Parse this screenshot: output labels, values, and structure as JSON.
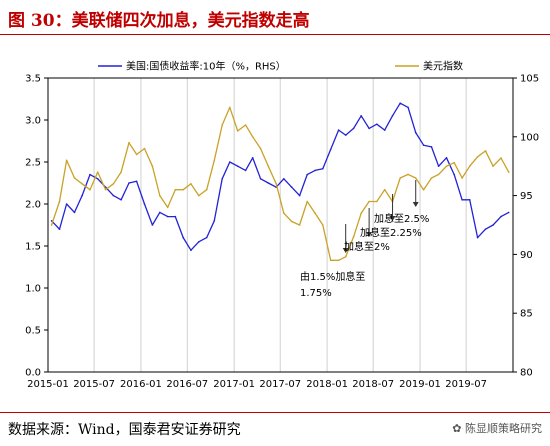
{
  "header": {
    "title": "图 30：美联储四次加息，美元指数走高"
  },
  "footer": {
    "source": "数据来源：Wind，国泰君安证券研究",
    "watermark": "陈显顺策略研究"
  },
  "colors": {
    "yield": "#2323d6",
    "dxy": "#c9a227",
    "title": "#c00000",
    "grid": "#d0d0d0"
  },
  "chart_data": {
    "type": "line",
    "title": "",
    "x_ticks": [
      "2015-01",
      "2015-07",
      "2016-01",
      "2016-07",
      "2017-01",
      "2017-07",
      "2018-01",
      "2018-07",
      "2019-01",
      "2019-07"
    ],
    "y_left": {
      "min": 0.0,
      "max": 3.5,
      "ticks": [
        "0.0",
        "0.5",
        "1.0",
        "1.5",
        "2.0",
        "2.5",
        "3.0",
        "3.5"
      ]
    },
    "y_right": {
      "min": 80,
      "max": 105,
      "ticks": [
        "80",
        "85",
        "90",
        "95",
        "100",
        "105"
      ]
    },
    "legend": {
      "placement": "top",
      "entries": [
        "美国:国债收益率:10年（%，RHS）",
        "美元指数"
      ]
    },
    "grid": true,
    "series": [
      {
        "name": "美国:国债收益率:10年（%，RHS）",
        "axis": "left",
        "points": [
          [
            "2015-01",
            1.8
          ],
          [
            "2015-02",
            1.7
          ],
          [
            "2015-03",
            2.0
          ],
          [
            "2015-04",
            1.9
          ],
          [
            "2015-05",
            2.1
          ],
          [
            "2015-06",
            2.35
          ],
          [
            "2015-07",
            2.3
          ],
          [
            "2015-08",
            2.2
          ],
          [
            "2015-09",
            2.1
          ],
          [
            "2015-10",
            2.05
          ],
          [
            "2015-11",
            2.25
          ],
          [
            "2015-12",
            2.27
          ],
          [
            "2016-01",
            2.0
          ],
          [
            "2016-02",
            1.75
          ],
          [
            "2016-03",
            1.9
          ],
          [
            "2016-04",
            1.85
          ],
          [
            "2016-05",
            1.85
          ],
          [
            "2016-06",
            1.6
          ],
          [
            "2016-07",
            1.45
          ],
          [
            "2016-08",
            1.55
          ],
          [
            "2016-09",
            1.6
          ],
          [
            "2016-10",
            1.8
          ],
          [
            "2016-11",
            2.3
          ],
          [
            "2016-12",
            2.5
          ],
          [
            "2017-01",
            2.45
          ],
          [
            "2017-02",
            2.4
          ],
          [
            "2017-03",
            2.55
          ],
          [
            "2017-04",
            2.3
          ],
          [
            "2017-05",
            2.25
          ],
          [
            "2017-06",
            2.2
          ],
          [
            "2017-07",
            2.3
          ],
          [
            "2017-08",
            2.2
          ],
          [
            "2017-09",
            2.1
          ],
          [
            "2017-10",
            2.35
          ],
          [
            "2017-11",
            2.4
          ],
          [
            "2017-12",
            2.42
          ],
          [
            "2018-01",
            2.65
          ],
          [
            "2018-02",
            2.88
          ],
          [
            "2018-03",
            2.82
          ],
          [
            "2018-04",
            2.9
          ],
          [
            "2018-05",
            3.05
          ],
          [
            "2018-06",
            2.9
          ],
          [
            "2018-07",
            2.95
          ],
          [
            "2018-08",
            2.88
          ],
          [
            "2018-09",
            3.05
          ],
          [
            "2018-10",
            3.2
          ],
          [
            "2018-11",
            3.15
          ],
          [
            "2018-12",
            2.85
          ],
          [
            "2019-01",
            2.7
          ],
          [
            "2019-02",
            2.68
          ],
          [
            "2019-03",
            2.45
          ],
          [
            "2019-04",
            2.55
          ],
          [
            "2019-05",
            2.35
          ],
          [
            "2019-06",
            2.05
          ],
          [
            "2019-07",
            2.05
          ],
          [
            "2019-08",
            1.6
          ],
          [
            "2019-09",
            1.7
          ],
          [
            "2019-10",
            1.75
          ],
          [
            "2019-11",
            1.85
          ],
          [
            "2019-12",
            1.9
          ]
        ]
      },
      {
        "name": "美元指数",
        "axis": "right",
        "points": [
          [
            "2015-01",
            92.5
          ],
          [
            "2015-02",
            94.5
          ],
          [
            "2015-03",
            98.0
          ],
          [
            "2015-04",
            96.5
          ],
          [
            "2015-05",
            96.0
          ],
          [
            "2015-06",
            95.5
          ],
          [
            "2015-07",
            97.0
          ],
          [
            "2015-08",
            95.5
          ],
          [
            "2015-09",
            96.0
          ],
          [
            "2015-10",
            97.0
          ],
          [
            "2015-11",
            99.5
          ],
          [
            "2015-12",
            98.5
          ],
          [
            "2016-01",
            99.0
          ],
          [
            "2016-02",
            97.5
          ],
          [
            "2016-03",
            95.0
          ],
          [
            "2016-04",
            94.0
          ],
          [
            "2016-05",
            95.5
          ],
          [
            "2016-06",
            95.5
          ],
          [
            "2016-07",
            96.0
          ],
          [
            "2016-08",
            95.0
          ],
          [
            "2016-09",
            95.5
          ],
          [
            "2016-10",
            98.0
          ],
          [
            "2016-11",
            101.0
          ],
          [
            "2016-12",
            102.5
          ],
          [
            "2017-01",
            100.5
          ],
          [
            "2017-02",
            101.0
          ],
          [
            "2017-03",
            100.0
          ],
          [
            "2017-04",
            99.0
          ],
          [
            "2017-05",
            97.5
          ],
          [
            "2017-06",
            96.0
          ],
          [
            "2017-07",
            93.5
          ],
          [
            "2017-08",
            92.8
          ],
          [
            "2017-09",
            92.5
          ],
          [
            "2017-10",
            94.5
          ],
          [
            "2017-11",
            93.5
          ],
          [
            "2017-12",
            92.5
          ],
          [
            "2018-01",
            89.5
          ],
          [
            "2018-02",
            89.5
          ],
          [
            "2018-03",
            89.8
          ],
          [
            "2018-04",
            91.5
          ],
          [
            "2018-05",
            93.5
          ],
          [
            "2018-06",
            94.5
          ],
          [
            "2018-07",
            94.5
          ],
          [
            "2018-08",
            95.5
          ],
          [
            "2018-09",
            94.5
          ],
          [
            "2018-10",
            96.5
          ],
          [
            "2018-11",
            96.8
          ],
          [
            "2018-12",
            96.5
          ],
          [
            "2019-01",
            95.5
          ],
          [
            "2019-02",
            96.5
          ],
          [
            "2019-03",
            96.8
          ],
          [
            "2019-04",
            97.5
          ],
          [
            "2019-05",
            97.8
          ],
          [
            "2019-06",
            96.5
          ],
          [
            "2019-07",
            97.5
          ],
          [
            "2019-08",
            98.3
          ],
          [
            "2019-09",
            98.8
          ],
          [
            "2019-10",
            97.5
          ],
          [
            "2019-11",
            98.2
          ],
          [
            "2019-12",
            97.0
          ]
        ]
      }
    ],
    "annotations": [
      {
        "text": "由1.5%加息至1.75%",
        "lines": [
          "由1.5%加息至",
          "1.75%"
        ],
        "x": "2018-03"
      },
      {
        "text": "加息至2%",
        "lines": [
          "加息至2%"
        ],
        "x": "2018-06"
      },
      {
        "text": "加息至2.25%",
        "lines": [
          "加息至2.25%"
        ],
        "x": "2018-09"
      },
      {
        "text": "加息至2.5%",
        "lines": [
          "加息至2.5%"
        ],
        "x": "2018-12"
      }
    ]
  }
}
